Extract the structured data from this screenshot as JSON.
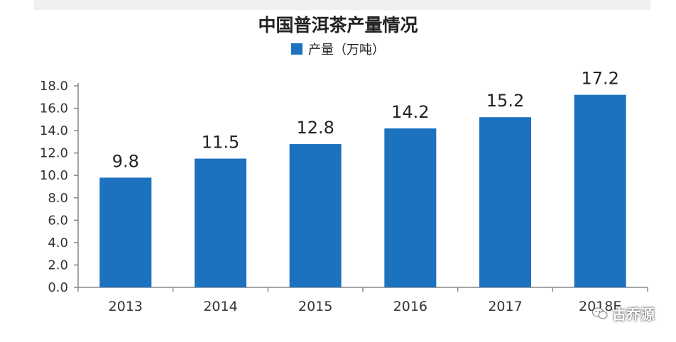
{
  "chart_data": {
    "type": "bar",
    "title": "中国普洱茶产量情况",
    "categories": [
      "2013",
      "2014",
      "2015",
      "2016",
      "2017",
      "2018E"
    ],
    "series": [
      {
        "name": "产量（万吨）",
        "values": [
          9.8,
          11.5,
          12.8,
          14.2,
          15.2,
          17.2
        ],
        "value_labels": [
          "9.8",
          "11.5",
          "12.8",
          "14.2",
          "15.2",
          "17.2"
        ]
      }
    ],
    "yticks": [
      "0.0",
      "2.0",
      "4.0",
      "6.0",
      "8.0",
      "10.0",
      "12.0",
      "14.0",
      "16.0",
      "18.0"
    ],
    "ylim": [
      0,
      18
    ],
    "legend_position": "top-center",
    "grid": false,
    "bar_color": "#1d72bf"
  },
  "watermark": {
    "text": "古乔源",
    "icon": "wechat-icon"
  }
}
